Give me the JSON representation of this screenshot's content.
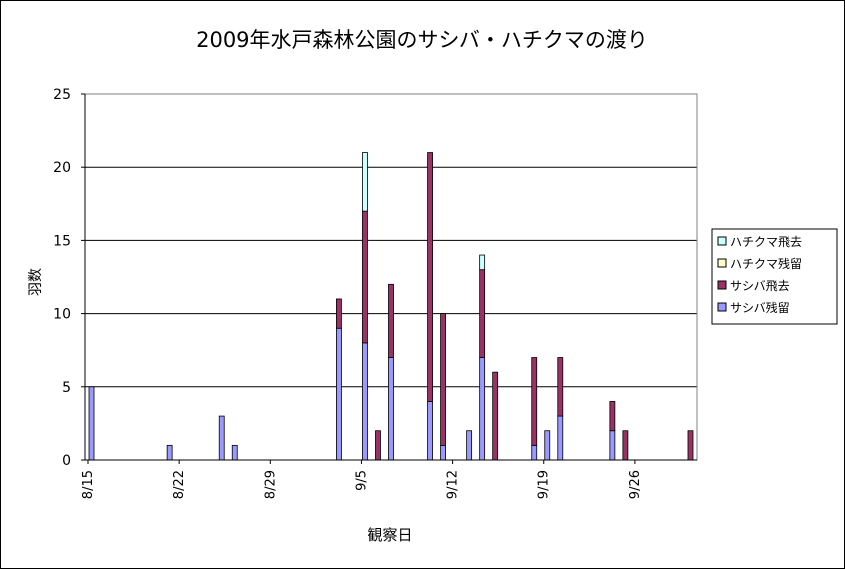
{
  "chart_data": {
    "type": "bar",
    "stacked": true,
    "title": "2009年水戸森林公園のサシバ・ハチクマの渡り",
    "xlabel": "観察日",
    "ylabel": "羽数",
    "ylim": [
      0,
      25
    ],
    "yticks": [
      "0",
      "5",
      "10",
      "15",
      "20",
      "25"
    ],
    "grid": true,
    "legend_position": "right",
    "x_tick_labels": [
      "8/15",
      "8/22",
      "8/29",
      "9/5",
      "9/12",
      "9/19",
      "9/26"
    ],
    "x_tick_days": [
      0,
      7,
      14,
      21,
      28,
      35,
      42
    ],
    "days": [
      "8/15",
      "8/16",
      "8/17",
      "8/18",
      "8/19",
      "8/20",
      "8/21",
      "8/22",
      "8/23",
      "8/24",
      "8/25",
      "8/26",
      "8/27",
      "8/28",
      "8/29",
      "8/30",
      "8/31",
      "9/1",
      "9/2",
      "9/3",
      "9/4",
      "9/5",
      "9/6",
      "9/7",
      "9/8",
      "9/9",
      "9/10",
      "9/11",
      "9/12",
      "9/13",
      "9/14",
      "9/15",
      "9/16",
      "9/17",
      "9/18",
      "9/19",
      "9/20",
      "9/21",
      "9/22",
      "9/23",
      "9/24",
      "9/25",
      "9/26",
      "9/27",
      "9/28",
      "9/29",
      "9/30"
    ],
    "series": [
      {
        "name": "サシバ残留",
        "color": "#9999ff",
        "values": [
          5,
          0,
          0,
          0,
          0,
          0,
          1,
          0,
          0,
          0,
          3,
          1,
          0,
          0,
          0,
          0,
          0,
          0,
          0,
          9,
          0,
          8,
          0,
          7,
          0,
          0,
          4,
          1,
          0,
          2,
          7,
          0,
          0,
          0,
          1,
          2,
          3,
          0,
          0,
          0,
          2,
          0,
          0,
          0,
          0,
          0,
          0
        ]
      },
      {
        "name": "サシバ飛去",
        "color": "#993366",
        "values": [
          0,
          0,
          0,
          0,
          0,
          0,
          0,
          0,
          0,
          0,
          0,
          0,
          0,
          0,
          0,
          0,
          0,
          0,
          0,
          2,
          0,
          9,
          2,
          5,
          0,
          0,
          17,
          9,
          0,
          0,
          6,
          6,
          0,
          0,
          6,
          0,
          4,
          0,
          0,
          0,
          2,
          2,
          0,
          0,
          0,
          0,
          2
        ]
      },
      {
        "name": "ハチクマ残留",
        "color": "#ffffcc",
        "values": [
          0,
          0,
          0,
          0,
          0,
          0,
          0,
          0,
          0,
          0,
          0,
          0,
          0,
          0,
          0,
          0,
          0,
          0,
          0,
          0,
          0,
          0,
          0,
          0,
          0,
          0,
          0,
          0,
          0,
          0,
          0,
          0,
          0,
          0,
          0,
          0,
          0,
          0,
          0,
          0,
          0,
          0,
          0,
          0,
          0,
          0,
          0
        ]
      },
      {
        "name": "ハチクマ飛去",
        "color": "#ccffff",
        "values": [
          0,
          0,
          0,
          0,
          0,
          0,
          0,
          0,
          0,
          0,
          0,
          0,
          0,
          0,
          0,
          0,
          0,
          0,
          0,
          0,
          0,
          4,
          0,
          0,
          0,
          0,
          0,
          0,
          0,
          0,
          1,
          0,
          0,
          0,
          0,
          0,
          0,
          0,
          0,
          0,
          0,
          0,
          0,
          0,
          0,
          0,
          0
        ]
      }
    ]
  },
  "legend_order": [
    "ハチクマ飛去",
    "ハチクマ残留",
    "サシバ飛去",
    "サシバ残留"
  ]
}
